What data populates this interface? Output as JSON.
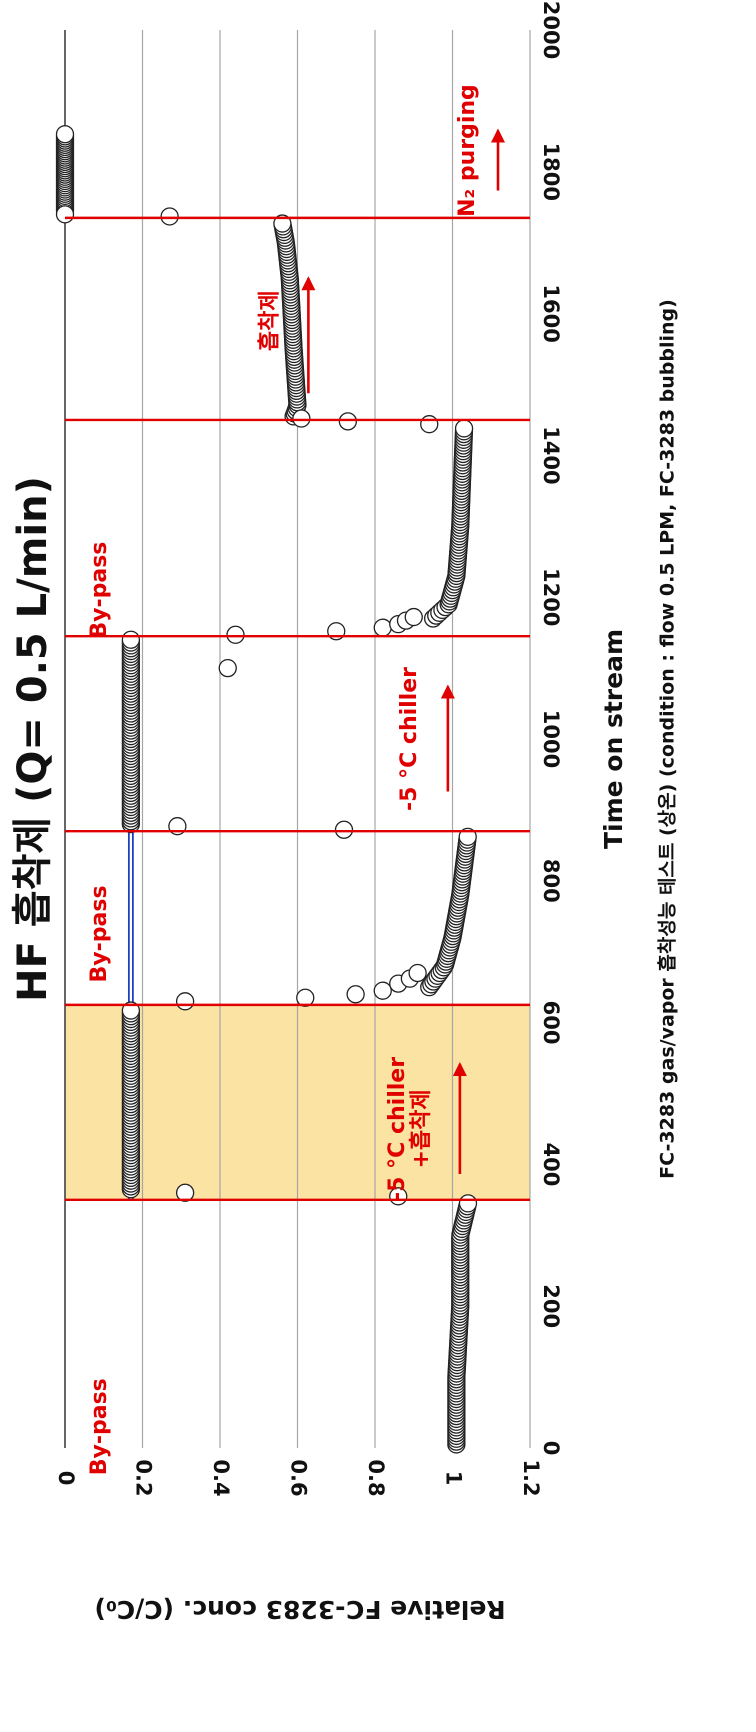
{
  "chart_data": {
    "type": "scatter",
    "title": "HF 흡착제 (Q= 0.5 L/min)",
    "xlabel": "Time on stream",
    "ylabel": "Relative FC-3283 conc. (C/C₀)",
    "caption": "FC-3283 gas/vapor 흡착성능 테스트 (상온) (condition : flow 0.5 LPM, FC-3283 bubbling)",
    "xlim": [
      0,
      2000
    ],
    "ylim": [
      0,
      1.2
    ],
    "xticks": [
      0,
      200,
      400,
      600,
      800,
      1000,
      1200,
      1400,
      1600,
      1800,
      2000
    ],
    "yticks": [
      0,
      0.2,
      0.4,
      0.6,
      0.8,
      1,
      1.2
    ],
    "grid": "horizontal",
    "highlight_region": {
      "x": [
        350,
        625
      ],
      "color": "#fbe3a4"
    },
    "reference_line": {
      "y": 0.17,
      "x": [
        350,
        1145
      ],
      "color": "#1f3fbf"
    },
    "phase_lines": {
      "x": [
        350,
        625,
        870,
        1145,
        1450,
        1735
      ],
      "color": "#e00000"
    },
    "annotations": [
      {
        "id": "bypass-1",
        "text": "By-pass",
        "x": 30,
        "y": 1.11,
        "arrow": false
      },
      {
        "id": "chiller-adsorbent",
        "lines": [
          "-5 °C chiller",
          "+흡착제"
        ],
        "x": 450,
        "y": 0.31,
        "arrow": true
      },
      {
        "id": "bypass-2",
        "text": "By-pass",
        "x": 725,
        "y": 1.11,
        "arrow": false
      },
      {
        "id": "chiller",
        "lines": [
          "-5 °C chiller"
        ],
        "x": 1000,
        "y": 0.31,
        "arrow": true
      },
      {
        "id": "bypass-3",
        "text": "By-pass",
        "x": 1210,
        "y": 1.11,
        "arrow": false
      },
      {
        "id": "adsorbent",
        "lines": [
          "흡착제"
        ],
        "x": 1590,
        "y": 0.67,
        "arrow": true
      },
      {
        "id": "n2-purging",
        "text": "N₂ purging",
        "x": 1830,
        "y": 0.16,
        "arrow": true
      }
    ],
    "series": [
      {
        "marker": "open-circle",
        "segments": [
          {
            "x_range": [
              5,
              345
            ],
            "step": 4,
            "y_points": [
              [
                5,
                1.01
              ],
              [
                100,
                1.01
              ],
              [
                200,
                1.02
              ],
              [
                300,
                1.02
              ],
              [
                345,
                1.04
              ]
            ]
          },
          {
            "x_range": [
              365,
              620
            ],
            "step": 4,
            "y_points": [
              [
                365,
                0.17
              ],
              [
                620,
                0.17
              ]
            ]
          },
          {
            "x_range": [
              650,
              865
            ],
            "step": 4,
            "y_points": [
              [
                650,
                0.94
              ],
              [
                680,
                0.98
              ],
              [
                720,
                1.0
              ],
              [
                780,
                1.02
              ],
              [
                865,
                1.04
              ]
            ]
          },
          {
            "x_range": [
              880,
              1140
            ],
            "step": 4,
            "y_points": [
              [
                880,
                0.17
              ],
              [
                1140,
                0.17
              ]
            ]
          },
          {
            "x_range": [
              1170,
              1440
            ],
            "step": 4,
            "y_points": [
              [
                1170,
                0.95
              ],
              [
                1190,
                0.99
              ],
              [
                1230,
                1.01
              ],
              [
                1300,
                1.02
              ],
              [
                1440,
                1.03
              ]
            ]
          },
          {
            "x_range": [
              1455,
              1730
            ],
            "step": 4,
            "y_points": [
              [
                1455,
                0.59
              ],
              [
                1470,
                0.6
              ],
              [
                1550,
                0.59
              ],
              [
                1650,
                0.58
              ],
              [
                1700,
                0.57
              ],
              [
                1730,
                0.56
              ]
            ]
          },
          {
            "x_range": [
              1745,
              1855
            ],
            "step": 3,
            "y_points": [
              [
                1745,
                0.0
              ],
              [
                1855,
                0.0
              ]
            ]
          }
        ],
        "points": [
          [
            355,
            0.86
          ],
          [
            360,
            0.31
          ],
          [
            630,
            0.31
          ],
          [
            635,
            0.62
          ],
          [
            640,
            0.75
          ],
          [
            645,
            0.82
          ],
          [
            655,
            0.86
          ],
          [
            662,
            0.89
          ],
          [
            670,
            0.91
          ],
          [
            872,
            0.72
          ],
          [
            877,
            0.29
          ],
          [
            1100,
            0.42
          ],
          [
            1147,
            0.44
          ],
          [
            1152,
            0.7
          ],
          [
            1157,
            0.82
          ],
          [
            1162,
            0.86
          ],
          [
            1167,
            0.88
          ],
          [
            1172,
            0.9
          ],
          [
            1444,
            0.94
          ],
          [
            1448,
            0.73
          ],
          [
            1452,
            0.61
          ],
          [
            1737,
            0.27
          ],
          [
            1740,
            0.0
          ]
        ]
      }
    ]
  }
}
